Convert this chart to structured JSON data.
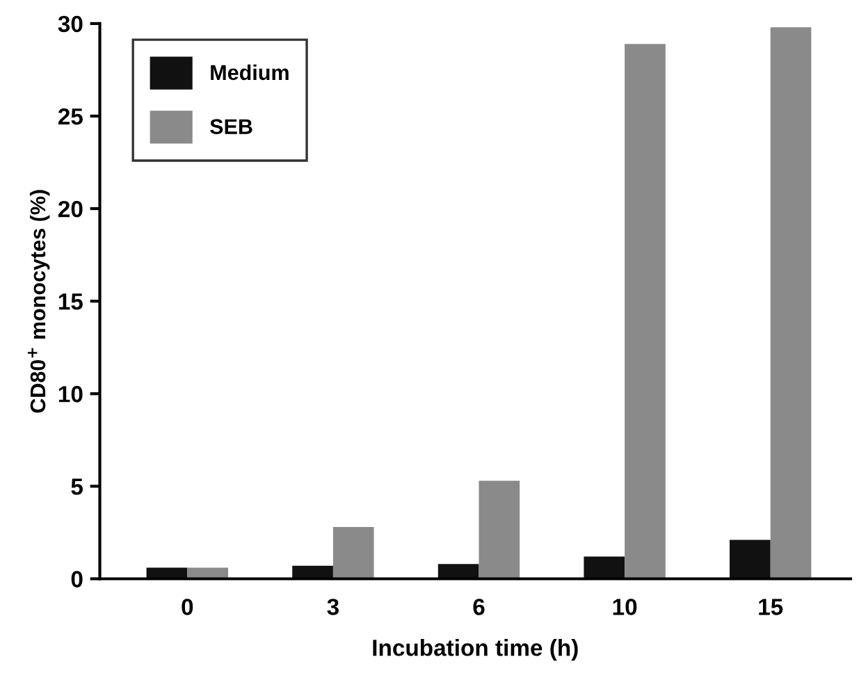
{
  "chart_data": {
    "type": "bar",
    "xlabel": "Incubation time (h)",
    "ylabel": "CD80$^{+}$ monocytes (%)",
    "categories": [
      "0",
      "3",
      "6",
      "10",
      "15"
    ],
    "series": [
      {
        "name": "Medium",
        "color": "#111111",
        "values": [
          0.6,
          0.7,
          0.8,
          1.2,
          2.1
        ]
      },
      {
        "name": "SEB",
        "color": "#8a8a8a",
        "values": [
          0.6,
          2.8,
          5.3,
          28.9,
          29.8
        ]
      }
    ],
    "ylim": [
      0,
      30
    ],
    "yticks": [
      0,
      5,
      10,
      15,
      20,
      25,
      30
    ],
    "grid": false,
    "legend": "top left"
  }
}
